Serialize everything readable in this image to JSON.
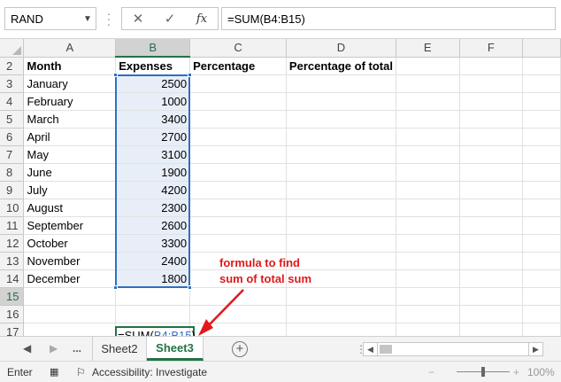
{
  "formula_bar": {
    "name_box": "RAND",
    "cancel_icon": "✕",
    "enter_icon": "✓",
    "fx_label": "fx",
    "formula": "=SUM(B4:B15)"
  },
  "columns": [
    "A",
    "B",
    "C",
    "D",
    "E",
    "F"
  ],
  "rows": [
    {
      "num": "2",
      "a": "Month",
      "b": "Expenses",
      "c": "Percentage",
      "d": "Percentage of total"
    },
    {
      "num": "3",
      "a": "January",
      "b": "2500"
    },
    {
      "num": "4",
      "a": "February",
      "b": "1000"
    },
    {
      "num": "5",
      "a": "March",
      "b": "3400"
    },
    {
      "num": "6",
      "a": "April",
      "b": "2700"
    },
    {
      "num": "7",
      "a": "May",
      "b": "3100"
    },
    {
      "num": "8",
      "a": "June",
      "b": "1900"
    },
    {
      "num": "9",
      "a": "July",
      "b": "4200"
    },
    {
      "num": "10",
      "a": "August",
      "b": "2300"
    },
    {
      "num": "11",
      "a": "September",
      "b": "2600"
    },
    {
      "num": "12",
      "a": "October",
      "b": "3300"
    },
    {
      "num": "13",
      "a": "November",
      "b": "2400"
    },
    {
      "num": "14",
      "a": "December",
      "b": "1800"
    },
    {
      "num": "15",
      "a": "",
      "b": ""
    },
    {
      "num": "16",
      "a": "",
      "b": ""
    },
    {
      "num": "17",
      "a": "",
      "b": ""
    }
  ],
  "edit_cell": {
    "prefix": "=SUM(",
    "ref": "B4:B15",
    "suffix": ")"
  },
  "annotation": {
    "line1": "formula to find",
    "line2": "sum of total sum",
    "color": "#e0191b"
  },
  "tabs": {
    "ellipsis": "...",
    "sheets": [
      "Sheet2",
      "Sheet3"
    ],
    "active": "Sheet3",
    "add": "+"
  },
  "status": {
    "mode": "Enter",
    "accessibility": "Accessibility: Investigate",
    "zoom": "100%"
  },
  "colors": {
    "accent": "#217346",
    "selection": "#2e6fc2"
  }
}
